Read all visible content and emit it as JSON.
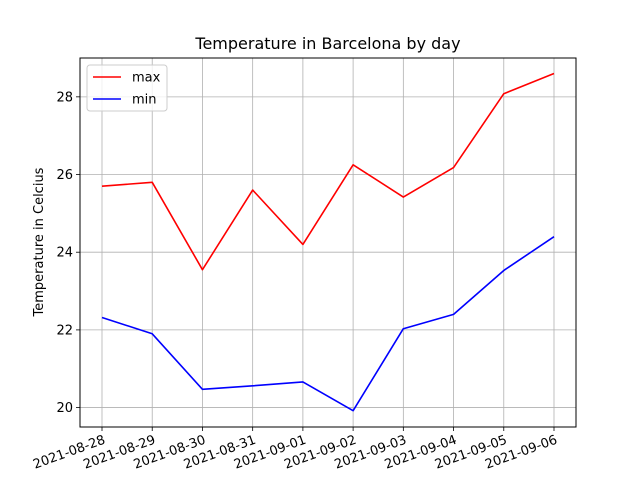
{
  "chart_data": {
    "type": "line",
    "title": "Temperature in Barcelona by day",
    "xlabel": "",
    "ylabel": "Temperature in Celcius",
    "x": [
      "2021-08-28",
      "2021-08-29",
      "2021-08-30",
      "2021-08-31",
      "2021-09-01",
      "2021-09-02",
      "2021-09-03",
      "2021-09-04",
      "2021-09-05",
      "2021-09-06"
    ],
    "series": [
      {
        "name": "max",
        "color": "#ff0000",
        "values": [
          25.7,
          25.8,
          23.55,
          25.6,
          24.2,
          26.25,
          25.42,
          26.18,
          28.08,
          28.6
        ]
      },
      {
        "name": "min",
        "color": "#0000ff",
        "values": [
          22.32,
          21.9,
          20.47,
          20.56,
          20.66,
          19.92,
          22.03,
          22.4,
          23.53,
          24.4
        ]
      }
    ],
    "yticks": [
      20,
      22,
      24,
      26,
      28
    ],
    "ylim": [
      19.5,
      29.0
    ],
    "grid": true,
    "legend_position": "top-left"
  }
}
